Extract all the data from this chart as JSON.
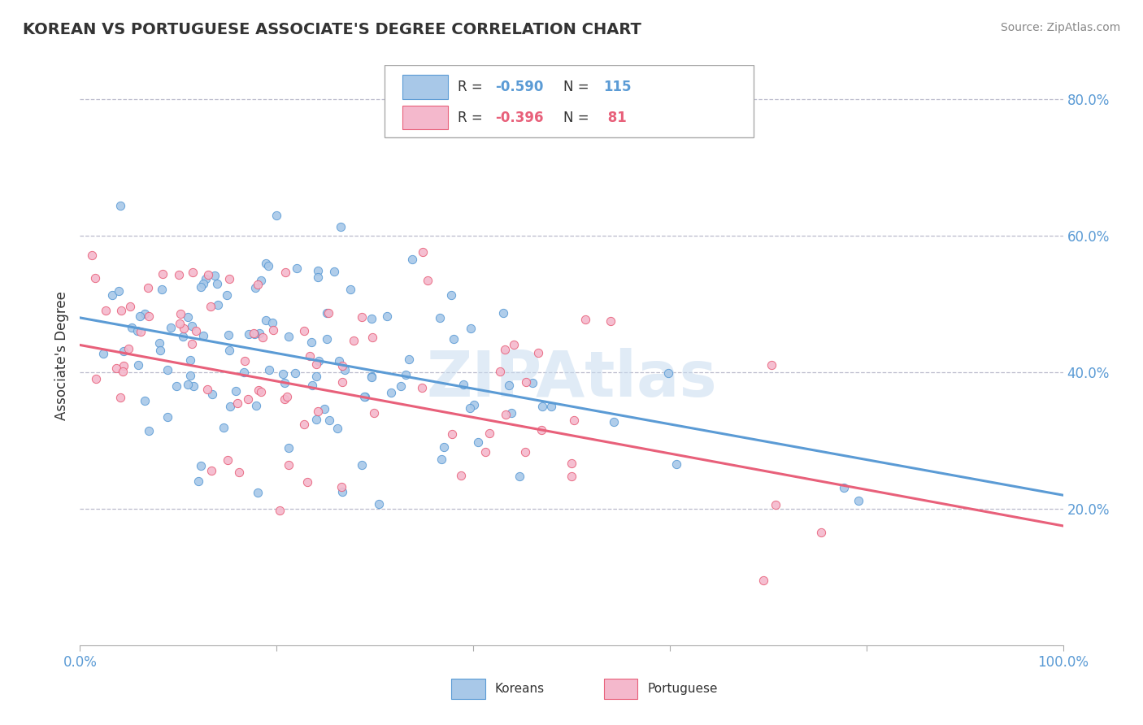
{
  "title": "KOREAN VS PORTUGUESE ASSOCIATE'S DEGREE CORRELATION CHART",
  "source_text": "Source: ZipAtlas.com",
  "ylabel": "Associate's Degree",
  "watermark": "ZIPAtlas",
  "korean_R": -0.59,
  "korean_N": 115,
  "portuguese_R": -0.396,
  "portuguese_N": 81,
  "blue_color": "#A8C8E8",
  "pink_color": "#F4B8CC",
  "blue_line_color": "#5B9BD5",
  "pink_line_color": "#E8607A",
  "xlim": [
    0.0,
    1.0
  ],
  "ylim": [
    0.0,
    0.85
  ],
  "background_color": "#FFFFFF",
  "grid_color": "#BBBBCC",
  "title_fontsize": 14,
  "axis_label_color": "#5B9BD5",
  "text_color": "#333333",
  "seed": 42,
  "line_blue_x0": 0.0,
  "line_blue_y0": 0.48,
  "line_blue_x1": 1.0,
  "line_blue_y1": 0.22,
  "line_pink_x0": 0.0,
  "line_pink_y0": 0.44,
  "line_pink_x1": 1.0,
  "line_pink_y1": 0.175
}
